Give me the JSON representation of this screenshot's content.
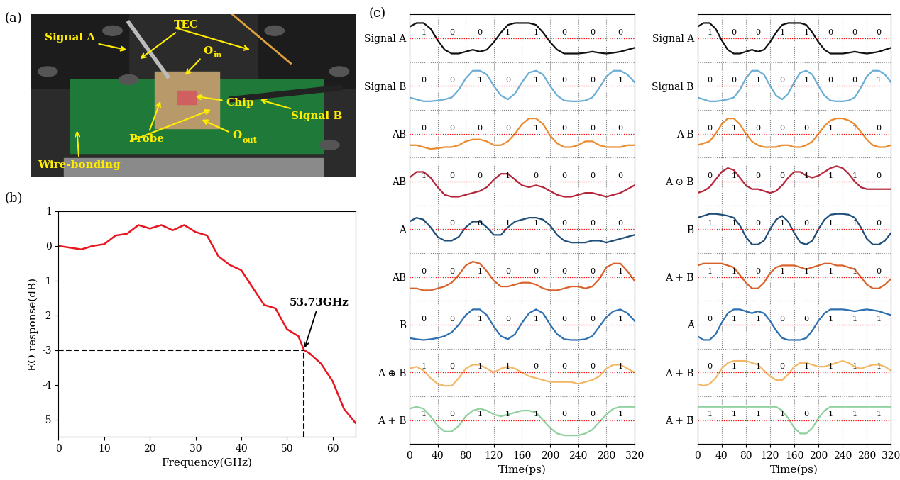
{
  "panel_labels": [
    "(a)",
    "(b)",
    "(c)"
  ],
  "photo": {
    "labels": [
      {
        "text": "Signal A"
      },
      {
        "text": "TEC"
      },
      {
        "text": "O",
        "subscript": "in"
      },
      {
        "text": "Chip"
      },
      {
        "text": "Signal B"
      },
      {
        "text": "Probe"
      },
      {
        "text": "O",
        "subscript": "out"
      },
      {
        "text": "Wire-bonding"
      }
    ]
  },
  "chart_data": [
    {
      "type": "line",
      "xlabel": "Frequency(GHz)",
      "ylabel": "EO response(dB)",
      "x": [
        0,
        2.5,
        5,
        7.5,
        10,
        12.5,
        15,
        17.5,
        20,
        22.5,
        25,
        27.5,
        30,
        32.5,
        35,
        37.5,
        40,
        42.5,
        45,
        47.5,
        50,
        52.5,
        53.73,
        55,
        57.5,
        60,
        62.5,
        65
      ],
      "values": [
        0,
        -0.05,
        -0.1,
        0,
        0.05,
        0.3,
        0.35,
        0.6,
        0.5,
        0.6,
        0.45,
        0.6,
        0.4,
        0.3,
        -0.3,
        -0.55,
        -0.7,
        -1.2,
        -1.7,
        -1.8,
        -2.4,
        -2.6,
        -3.0,
        -3.1,
        -3.4,
        -3.9,
        -4.7,
        -5.1
      ],
      "color": "#e8141e",
      "xlim": [
        0,
        65
      ],
      "xticks": [
        0,
        10,
        20,
        30,
        40,
        50,
        60
      ],
      "ylim": [
        -5.5,
        1
      ],
      "yticks": [
        -5,
        -4,
        -3,
        -2,
        -1,
        0,
        1
      ],
      "grid": false,
      "annotations": [
        {
          "text": "53.73GHz",
          "x": 53.73,
          "y": -3.0
        }
      ]
    },
    {
      "type": "waveform",
      "xlabel": "Time(ps)",
      "x": [
        0,
        10,
        20,
        30,
        40,
        50,
        60,
        70,
        80,
        90,
        100,
        110,
        120,
        130,
        140,
        150,
        160,
        170,
        180,
        190,
        200,
        210,
        220,
        230,
        240,
        250,
        260,
        270,
        280,
        290,
        300,
        310,
        320
      ],
      "xlim": [
        0,
        320
      ],
      "xticks": [
        0,
        40,
        80,
        120,
        160,
        200,
        240,
        280,
        320
      ],
      "grid": true,
      "series": [
        {
          "name": "Signal A",
          "color": "#111111",
          "bits": [
            "1",
            "0",
            "0",
            "1",
            "1",
            "0",
            "0",
            "0"
          ],
          "values": [
            0.8,
            0.9,
            0.9,
            0.75,
            0.45,
            0.2,
            0.1,
            0.1,
            0.15,
            0.2,
            0.15,
            0.2,
            0.4,
            0.65,
            0.85,
            0.9,
            0.9,
            0.9,
            0.85,
            0.65,
            0.4,
            0.2,
            0.1,
            0.1,
            0.1,
            0.12,
            0.15,
            0.12,
            0.1,
            0.12,
            0.15,
            0.2,
            0.25
          ]
        },
        {
          "name": "Signal B",
          "color": "#6aaed6",
          "bits": [
            "0",
            "0",
            "1",
            "0",
            "1",
            "0",
            "0",
            "1"
          ],
          "values": [
            0.2,
            0.15,
            0.1,
            0.1,
            0.12,
            0.15,
            0.2,
            0.4,
            0.7,
            0.9,
            0.9,
            0.8,
            0.5,
            0.25,
            0.15,
            0.3,
            0.6,
            0.85,
            0.9,
            0.8,
            0.5,
            0.25,
            0.12,
            0.1,
            0.1,
            0.12,
            0.2,
            0.45,
            0.75,
            0.9,
            0.9,
            0.8,
            0.6
          ]
        },
        {
          "name": "AB",
          "color": "#ec8b2e",
          "bits": [
            "0",
            "0",
            "0",
            "0",
            "1",
            "0",
            "0",
            "0"
          ],
          "values": [
            0.2,
            0.2,
            0.15,
            0.1,
            0.12,
            0.15,
            0.15,
            0.2,
            0.3,
            0.35,
            0.35,
            0.3,
            0.2,
            0.2,
            0.3,
            0.5,
            0.75,
            0.9,
            0.9,
            0.75,
            0.45,
            0.25,
            0.15,
            0.15,
            0.2,
            0.3,
            0.3,
            0.2,
            0.15,
            0.15,
            0.15,
            0.2,
            0.2
          ]
        },
        {
          "name": "AB̄",
          "color": "#b5253a",
          "bits": [
            "1",
            "0",
            "0",
            "1",
            "0",
            "0",
            "0",
            "0"
          ],
          "values": [
            0.6,
            0.75,
            0.75,
            0.6,
            0.35,
            0.15,
            0.1,
            0.1,
            0.15,
            0.2,
            0.25,
            0.35,
            0.55,
            0.7,
            0.7,
            0.55,
            0.4,
            0.35,
            0.4,
            0.35,
            0.25,
            0.15,
            0.1,
            0.1,
            0.15,
            0.2,
            0.2,
            0.15,
            0.1,
            0.15,
            0.2,
            0.3,
            0.4
          ]
        },
        {
          "name": "A",
          "color": "#1f4e79",
          "bits": [
            "1",
            "0",
            "0",
            "1",
            "1",
            "0",
            "0",
            "0"
          ],
          "values": [
            0.7,
            0.8,
            0.75,
            0.55,
            0.3,
            0.2,
            0.2,
            0.3,
            0.55,
            0.7,
            0.7,
            0.55,
            0.35,
            0.35,
            0.55,
            0.7,
            0.75,
            0.8,
            0.8,
            0.75,
            0.6,
            0.35,
            0.2,
            0.15,
            0.15,
            0.15,
            0.2,
            0.2,
            0.15,
            0.2,
            0.25,
            0.3,
            0.35
          ]
        },
        {
          "name": "ĀB",
          "color": "#d9622b",
          "bits": [
            "0",
            "0",
            "1",
            "0",
            "0",
            "0",
            "0",
            "1"
          ],
          "values": [
            0.2,
            0.2,
            0.15,
            0.15,
            0.2,
            0.25,
            0.35,
            0.55,
            0.8,
            0.9,
            0.85,
            0.65,
            0.4,
            0.25,
            0.25,
            0.3,
            0.35,
            0.35,
            0.3,
            0.2,
            0.15,
            0.15,
            0.2,
            0.25,
            0.25,
            0.2,
            0.25,
            0.45,
            0.75,
            0.85,
            0.85,
            0.65,
            0.4
          ]
        },
        {
          "name": "B",
          "color": "#2c6fb0",
          "bits": [
            "0",
            "0",
            "1",
            "0",
            "1",
            "0",
            "0",
            "1"
          ],
          "values": [
            0.15,
            0.12,
            0.1,
            0.12,
            0.15,
            0.2,
            0.3,
            0.5,
            0.75,
            0.9,
            0.9,
            0.75,
            0.45,
            0.2,
            0.12,
            0.25,
            0.55,
            0.8,
            0.9,
            0.8,
            0.5,
            0.25,
            0.12,
            0.1,
            0.1,
            0.12,
            0.2,
            0.45,
            0.7,
            0.85,
            0.9,
            0.8,
            0.6
          ]
        },
        {
          "name": "A ⊕ B",
          "color": "#f2b866",
          "bits": [
            "1",
            "0",
            "1",
            "1",
            "0",
            "0",
            "0",
            "1"
          ],
          "values": [
            0.6,
            0.65,
            0.55,
            0.35,
            0.2,
            0.15,
            0.15,
            0.35,
            0.6,
            0.7,
            0.7,
            0.6,
            0.5,
            0.6,
            0.65,
            0.6,
            0.5,
            0.4,
            0.35,
            0.3,
            0.25,
            0.25,
            0.25,
            0.25,
            0.2,
            0.25,
            0.3,
            0.4,
            0.6,
            0.7,
            0.7,
            0.6,
            0.5
          ]
        },
        {
          "name": "A + B",
          "color": "#8fd19e",
          "bits": [
            "1",
            "0",
            "1",
            "1",
            "1",
            "0",
            "0",
            "1"
          ],
          "values": [
            0.8,
            0.85,
            0.8,
            0.6,
            0.35,
            0.2,
            0.2,
            0.35,
            0.6,
            0.75,
            0.8,
            0.75,
            0.65,
            0.6,
            0.65,
            0.7,
            0.75,
            0.75,
            0.7,
            0.5,
            0.3,
            0.15,
            0.1,
            0.1,
            0.1,
            0.15,
            0.25,
            0.45,
            0.65,
            0.8,
            0.85,
            0.85,
            0.85
          ]
        }
      ]
    },
    {
      "type": "waveform",
      "xlabel": "Time(ps)",
      "x": [
        0,
        10,
        20,
        30,
        40,
        50,
        60,
        70,
        80,
        90,
        100,
        110,
        120,
        130,
        140,
        150,
        160,
        170,
        180,
        190,
        200,
        210,
        220,
        230,
        240,
        250,
        260,
        270,
        280,
        290,
        300,
        310,
        320
      ],
      "xlim": [
        0,
        320
      ],
      "xticks": [
        0,
        40,
        80,
        120,
        160,
        200,
        240,
        280,
        320
      ],
      "grid": true,
      "series": [
        {
          "name": "Signal A",
          "color": "#111111",
          "bits": [
            "1",
            "0",
            "0",
            "1",
            "1",
            "0",
            "0",
            "0"
          ],
          "values": [
            0.8,
            0.9,
            0.9,
            0.75,
            0.45,
            0.2,
            0.1,
            0.1,
            0.15,
            0.2,
            0.15,
            0.2,
            0.4,
            0.65,
            0.85,
            0.9,
            0.9,
            0.9,
            0.85,
            0.65,
            0.4,
            0.2,
            0.1,
            0.1,
            0.1,
            0.12,
            0.15,
            0.12,
            0.1,
            0.12,
            0.15,
            0.2,
            0.25
          ]
        },
        {
          "name": "Signal B",
          "color": "#6aaed6",
          "bits": [
            "0",
            "0",
            "1",
            "0",
            "1",
            "0",
            "0",
            "1"
          ],
          "values": [
            0.2,
            0.15,
            0.1,
            0.1,
            0.12,
            0.15,
            0.2,
            0.4,
            0.7,
            0.9,
            0.9,
            0.8,
            0.5,
            0.25,
            0.15,
            0.3,
            0.6,
            0.85,
            0.9,
            0.8,
            0.5,
            0.25,
            0.12,
            0.1,
            0.1,
            0.12,
            0.2,
            0.45,
            0.75,
            0.9,
            0.9,
            0.8,
            0.6
          ]
        },
        {
          "name": "Ā B̄",
          "color": "#ec8b2e",
          "bits": [
            "0",
            "1",
            "0",
            "0",
            "0",
            "1",
            "1",
            "0"
          ],
          "values": [
            0.2,
            0.25,
            0.3,
            0.5,
            0.75,
            0.9,
            0.9,
            0.75,
            0.5,
            0.3,
            0.2,
            0.15,
            0.15,
            0.15,
            0.2,
            0.2,
            0.15,
            0.15,
            0.2,
            0.3,
            0.5,
            0.7,
            0.85,
            0.9,
            0.9,
            0.85,
            0.75,
            0.55,
            0.35,
            0.2,
            0.15,
            0.15,
            0.2
          ]
        },
        {
          "name": "A ⊙ B",
          "color": "#b5253a",
          "bits": [
            "0",
            "1",
            "0",
            "0",
            "1",
            "1",
            "1",
            "0"
          ],
          "values": [
            0.2,
            0.25,
            0.35,
            0.55,
            0.75,
            0.85,
            0.8,
            0.6,
            0.4,
            0.3,
            0.3,
            0.25,
            0.2,
            0.25,
            0.4,
            0.6,
            0.75,
            0.75,
            0.65,
            0.6,
            0.65,
            0.75,
            0.85,
            0.9,
            0.85,
            0.7,
            0.5,
            0.35,
            0.3,
            0.3,
            0.3,
            0.3,
            0.3
          ]
        },
        {
          "name": "B̄",
          "color": "#1f4e79",
          "bits": [
            "1",
            "1",
            "0",
            "1",
            "0",
            "1",
            "1",
            "0"
          ],
          "values": [
            0.8,
            0.85,
            0.9,
            0.9,
            0.88,
            0.85,
            0.8,
            0.6,
            0.3,
            0.1,
            0.1,
            0.2,
            0.5,
            0.75,
            0.85,
            0.7,
            0.4,
            0.15,
            0.1,
            0.2,
            0.5,
            0.75,
            0.88,
            0.9,
            0.9,
            0.88,
            0.8,
            0.55,
            0.25,
            0.1,
            0.1,
            0.2,
            0.4
          ]
        },
        {
          "name": "A + B̄",
          "color": "#d9622b",
          "bits": [
            "1",
            "1",
            "0",
            "1",
            "1",
            "1",
            "1",
            "0"
          ],
          "values": [
            0.8,
            0.85,
            0.85,
            0.85,
            0.85,
            0.8,
            0.75,
            0.55,
            0.35,
            0.2,
            0.2,
            0.35,
            0.6,
            0.75,
            0.8,
            0.8,
            0.8,
            0.75,
            0.7,
            0.75,
            0.8,
            0.85,
            0.85,
            0.8,
            0.8,
            0.75,
            0.7,
            0.5,
            0.3,
            0.2,
            0.2,
            0.3,
            0.45
          ]
        },
        {
          "name": "Ā",
          "color": "#2c6fb0",
          "bits": [
            "0",
            "1",
            "1",
            "0",
            "0",
            "1",
            "1",
            "1"
          ],
          "values": [
            0.2,
            0.1,
            0.1,
            0.25,
            0.55,
            0.8,
            0.9,
            0.9,
            0.85,
            0.8,
            0.85,
            0.8,
            0.6,
            0.35,
            0.15,
            0.1,
            0.1,
            0.1,
            0.15,
            0.35,
            0.6,
            0.8,
            0.9,
            0.9,
            0.9,
            0.88,
            0.85,
            0.88,
            0.9,
            0.88,
            0.85,
            0.8,
            0.75
          ]
        },
        {
          "name": "Ā + B",
          "color": "#f2b866",
          "bits": [
            "0",
            "1",
            "1",
            "0",
            "1",
            "1",
            "1",
            "1"
          ],
          "values": [
            0.2,
            0.15,
            0.2,
            0.35,
            0.6,
            0.75,
            0.8,
            0.8,
            0.8,
            0.75,
            0.7,
            0.55,
            0.4,
            0.3,
            0.3,
            0.45,
            0.65,
            0.75,
            0.75,
            0.7,
            0.65,
            0.65,
            0.7,
            0.75,
            0.8,
            0.75,
            0.65,
            0.6,
            0.65,
            0.7,
            0.7,
            0.65,
            0.55
          ]
        },
        {
          "name": "Ā + B̄",
          "color": "#8fd19e",
          "bits": [
            "1",
            "1",
            "1",
            "1",
            "0",
            "1",
            "1",
            "1"
          ],
          "values": [
            0.85,
            0.85,
            0.85,
            0.85,
            0.85,
            0.85,
            0.85,
            0.85,
            0.85,
            0.85,
            0.85,
            0.85,
            0.85,
            0.85,
            0.75,
            0.55,
            0.3,
            0.15,
            0.15,
            0.3,
            0.55,
            0.75,
            0.85,
            0.85,
            0.85,
            0.85,
            0.85,
            0.85,
            0.85,
            0.85,
            0.85,
            0.85,
            0.85
          ]
        }
      ]
    }
  ]
}
